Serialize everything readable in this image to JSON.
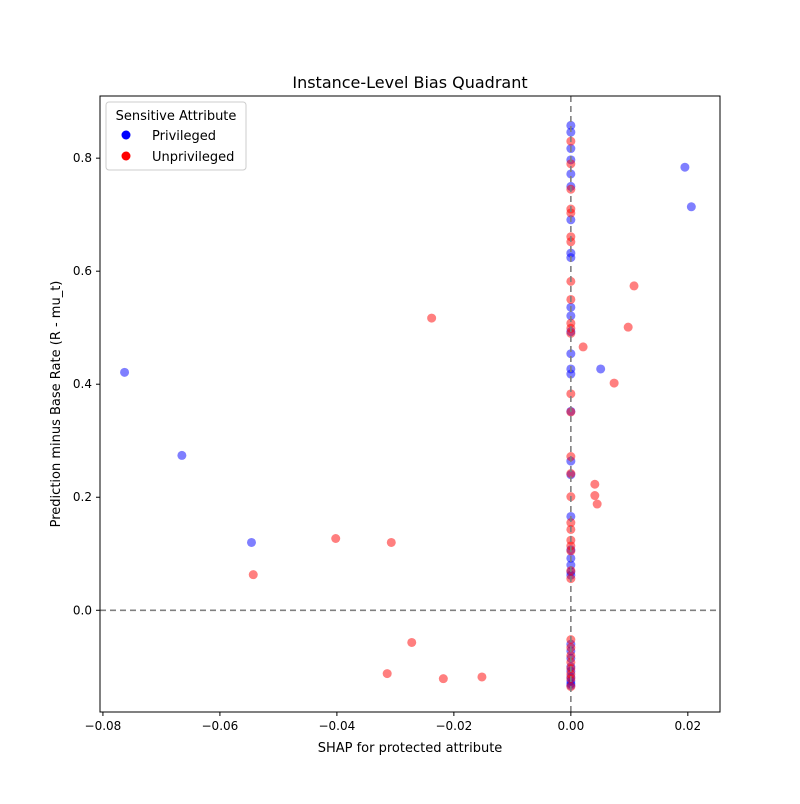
{
  "chart_data": {
    "type": "scatter",
    "title": "Instance-Level Bias Quadrant",
    "xlabel": "SHAP for protected attribute",
    "ylabel": "Prediction minus Base Rate (R - mu_t)",
    "xlim": [
      -0.0805,
      0.0255
    ],
    "ylim": [
      -0.18,
      0.91
    ],
    "xticks": [
      -0.08,
      -0.06,
      -0.04,
      -0.02,
      0.0,
      0.02
    ],
    "xtick_labels": [
      "−0.08",
      "−0.06",
      "−0.04",
      "−0.02",
      "0.00",
      "0.02"
    ],
    "yticks": [
      0.0,
      0.2,
      0.4,
      0.6,
      0.8
    ],
    "ytick_labels": [
      "0.0",
      "0.2",
      "0.4",
      "0.6",
      "0.8"
    ],
    "grid": false,
    "reference_lines": {
      "x": 0.0,
      "y": 0.0,
      "style": "dashed",
      "color": "#808080"
    },
    "legend": {
      "title": "Sensitive Attribute",
      "placement": "top-left",
      "entries": [
        {
          "label": "Privileged",
          "color": "#0000ff"
        },
        {
          "label": "Unprivileged",
          "color": "#ff0000"
        }
      ]
    },
    "marker_alpha": 0.5,
    "series": [
      {
        "name": "Privileged",
        "color": "#0000ff",
        "points": [
          [
            -0.0763,
            0.421
          ],
          [
            -0.0665,
            0.274
          ],
          [
            -0.0546,
            0.12
          ],
          [
            0.0195,
            0.784
          ],
          [
            0.0206,
            0.714
          ],
          [
            0.0051,
            0.427
          ],
          [
            0.0,
            0.858
          ],
          [
            0.0,
            0.846
          ],
          [
            0.0,
            0.817
          ],
          [
            0.0,
            0.797
          ],
          [
            0.0,
            0.772
          ],
          [
            0.0,
            0.75
          ],
          [
            0.0,
            0.691
          ],
          [
            0.0,
            0.632
          ],
          [
            0.0,
            0.624
          ],
          [
            0.0,
            0.536
          ],
          [
            0.0,
            0.521
          ],
          [
            0.0,
            0.493
          ],
          [
            0.0,
            0.454
          ],
          [
            0.0,
            0.427
          ],
          [
            0.0,
            0.418
          ],
          [
            0.0,
            0.352
          ],
          [
            0.0,
            0.264
          ],
          [
            0.0,
            0.24
          ],
          [
            0.0,
            0.166
          ],
          [
            0.0,
            0.107
          ],
          [
            0.0,
            0.092
          ],
          [
            0.0,
            0.08
          ],
          [
            0.0,
            0.068
          ],
          [
            0.0,
            0.062
          ],
          [
            0.0,
            -0.06
          ],
          [
            0.0,
            -0.072
          ],
          [
            0.0,
            -0.085
          ],
          [
            0.0,
            -0.1
          ],
          [
            0.0,
            -0.108
          ],
          [
            0.0,
            -0.118
          ],
          [
            0.0,
            -0.125
          ],
          [
            0.0,
            -0.13
          ],
          [
            0.0,
            -0.133
          ]
        ]
      },
      {
        "name": "Unprivileged",
        "color": "#ff0000",
        "points": [
          [
            -0.0543,
            0.063
          ],
          [
            -0.0402,
            0.127
          ],
          [
            -0.0307,
            0.12
          ],
          [
            -0.0238,
            0.517
          ],
          [
            -0.0272,
            -0.057
          ],
          [
            -0.0314,
            -0.112
          ],
          [
            -0.0218,
            -0.121
          ],
          [
            -0.0152,
            -0.118
          ],
          [
            0.0021,
            0.466
          ],
          [
            0.0041,
            0.223
          ],
          [
            0.0041,
            0.203
          ],
          [
            0.0045,
            0.188
          ],
          [
            0.0074,
            0.402
          ],
          [
            0.0098,
            0.501
          ],
          [
            0.0108,
            0.574
          ],
          [
            0.0,
            0.83
          ],
          [
            0.0,
            0.79
          ],
          [
            0.0,
            0.745
          ],
          [
            0.0,
            0.71
          ],
          [
            0.0,
            0.703
          ],
          [
            0.0,
            0.661
          ],
          [
            0.0,
            0.652
          ],
          [
            0.0,
            0.582
          ],
          [
            0.0,
            0.55
          ],
          [
            0.0,
            0.508
          ],
          [
            0.0,
            0.499
          ],
          [
            0.0,
            0.49
          ],
          [
            0.0,
            0.383
          ],
          [
            0.0,
            0.351
          ],
          [
            0.0,
            0.272
          ],
          [
            0.0,
            0.242
          ],
          [
            0.0,
            0.201
          ],
          [
            0.0,
            0.155
          ],
          [
            0.0,
            0.143
          ],
          [
            0.0,
            0.124
          ],
          [
            0.0,
            0.114
          ],
          [
            0.0,
            0.105
          ],
          [
            0.0,
            0.07
          ],
          [
            0.0,
            0.056
          ],
          [
            0.0,
            -0.052
          ],
          [
            0.0,
            -0.066
          ],
          [
            0.0,
            -0.08
          ],
          [
            0.0,
            -0.092
          ],
          [
            0.0,
            -0.103
          ],
          [
            0.0,
            -0.113
          ],
          [
            0.0,
            -0.121
          ],
          [
            0.0,
            -0.135
          ]
        ]
      }
    ]
  }
}
